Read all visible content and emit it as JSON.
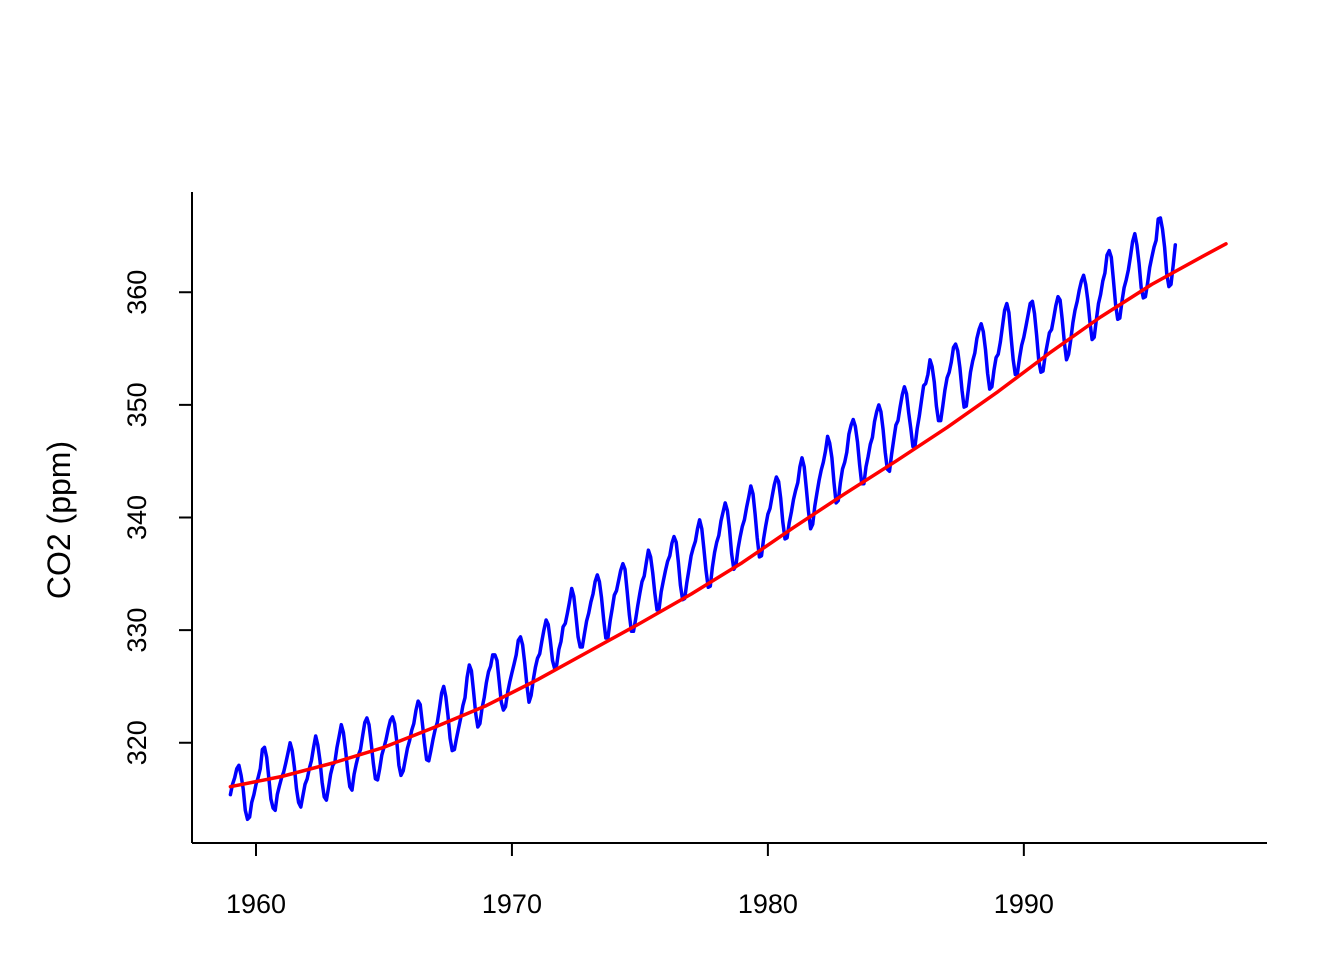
{
  "chart_data": {
    "type": "line",
    "title": "",
    "xlabel": "",
    "ylabel": "CO2 (ppm)",
    "xlim": [
      1957.5,
      1999.5
    ],
    "ylim": [
      311.1,
      368.9
    ],
    "x_ticks": [
      1960,
      1970,
      1980,
      1990
    ],
    "y_ticks": [
      320,
      330,
      340,
      350,
      360
    ],
    "grid": false,
    "legend": "none",
    "series": [
      {
        "kind": "monthly",
        "color": "#0000ff",
        "x_start": 1959.0,
        "x_step": 0.0833333,
        "values": [
          315.4,
          316.3,
          316.9,
          317.7,
          318.0,
          317.1,
          315.9,
          314.0,
          313.2,
          313.4,
          314.7,
          315.4,
          316.3,
          316.9,
          317.7,
          319.4,
          319.6,
          318.7,
          316.9,
          315.0,
          314.2,
          314.0,
          315.4,
          316.2,
          316.9,
          317.4,
          318.2,
          319.1,
          320.0,
          319.3,
          317.8,
          315.9,
          314.7,
          314.3,
          315.3,
          316.3,
          316.8,
          317.7,
          318.4,
          319.6,
          320.6,
          319.8,
          318.4,
          316.5,
          315.2,
          314.9,
          316.0,
          317.2,
          318.0,
          318.3,
          319.6,
          320.6,
          321.6,
          320.9,
          319.3,
          317.5,
          316.1,
          315.8,
          317.2,
          318.1,
          318.9,
          319.4,
          320.6,
          321.8,
          322.2,
          321.6,
          320.0,
          318.2,
          316.8,
          316.7,
          317.7,
          318.9,
          319.6,
          320.3,
          321.2,
          322.0,
          322.3,
          321.7,
          320.1,
          318.0,
          317.1,
          317.5,
          318.5,
          319.5,
          320.2,
          321.1,
          321.7,
          322.9,
          323.7,
          323.4,
          321.7,
          320.0,
          318.5,
          318.4,
          319.3,
          320.3,
          321.2,
          321.8,
          323.0,
          324.4,
          325.0,
          324.1,
          322.4,
          320.4,
          319.3,
          319.4,
          320.4,
          321.3,
          322.2,
          323.3,
          324.0,
          325.8,
          326.9,
          326.4,
          324.6,
          322.6,
          321.4,
          321.7,
          323.1,
          324.0,
          325.3,
          326.3,
          326.8,
          327.8,
          327.8,
          327.3,
          325.5,
          323.6,
          322.9,
          323.2,
          324.5,
          325.4,
          326.2,
          327.0,
          327.8,
          329.1,
          329.4,
          328.7,
          327.1,
          325.1,
          323.6,
          324.2,
          325.6,
          326.7,
          327.5,
          327.9,
          329.0,
          330.0,
          330.9,
          330.5,
          329.1,
          327.3,
          326.6,
          326.9,
          328.3,
          329.0,
          330.3,
          330.6,
          331.5,
          332.5,
          333.7,
          333.0,
          331.3,
          329.4,
          328.5,
          328.5,
          329.7,
          330.8,
          331.5,
          332.5,
          333.2,
          334.3,
          334.9,
          334.3,
          332.9,
          330.9,
          329.3,
          329.3,
          330.8,
          331.9,
          333.1,
          333.5,
          334.4,
          335.3,
          335.9,
          335.4,
          333.5,
          331.4,
          329.9,
          329.9,
          331.0,
          332.2,
          333.3,
          334.3,
          334.8,
          336.0,
          337.1,
          336.5,
          335.1,
          333.3,
          331.8,
          331.9,
          333.4,
          334.4,
          335.3,
          336.1,
          336.6,
          337.7,
          338.3,
          337.8,
          336.1,
          334.0,
          332.7,
          332.8,
          334.2,
          335.4,
          336.6,
          337.3,
          337.9,
          339.0,
          339.8,
          339.0,
          337.2,
          335.3,
          333.8,
          333.9,
          335.6,
          336.9,
          337.8,
          338.4,
          339.7,
          340.5,
          341.3,
          340.6,
          339.0,
          336.8,
          335.4,
          335.7,
          337.2,
          338.3,
          339.2,
          339.8,
          340.9,
          341.8,
          342.8,
          342.1,
          340.3,
          338.2,
          336.5,
          336.6,
          338.1,
          339.3,
          340.3,
          340.8,
          341.9,
          342.9,
          343.6,
          343.2,
          341.7,
          339.6,
          338.1,
          338.2,
          339.5,
          340.5,
          341.6,
          342.4,
          343.1,
          344.5,
          345.3,
          344.5,
          342.6,
          340.6,
          339.0,
          339.4,
          341.0,
          342.2,
          343.3,
          344.2,
          344.9,
          345.9,
          347.2,
          346.6,
          345.3,
          343.1,
          341.3,
          341.5,
          343.1,
          344.3,
          344.9,
          345.8,
          347.4,
          348.2,
          348.7,
          348.1,
          346.7,
          344.7,
          343.0,
          343.0,
          344.5,
          345.4,
          346.5,
          347.1,
          348.5,
          349.4,
          350.0,
          349.4,
          347.8,
          345.8,
          344.3,
          344.1,
          345.6,
          346.9,
          348.2,
          348.6,
          349.8,
          350.9,
          351.6,
          351.0,
          349.3,
          347.9,
          346.3,
          346.4,
          347.9,
          349.0,
          350.4,
          351.7,
          351.9,
          352.7,
          354.0,
          353.4,
          352.0,
          349.9,
          348.6,
          348.6,
          349.9,
          351.3,
          352.4,
          352.9,
          353.8,
          355.1,
          355.4,
          354.8,
          353.3,
          351.3,
          349.8,
          349.9,
          351.4,
          352.9,
          353.9,
          354.6,
          355.9,
          356.7,
          357.2,
          356.5,
          354.9,
          352.8,
          351.4,
          351.6,
          353.1,
          354.2,
          354.5,
          355.6,
          357.0,
          358.4,
          359.0,
          358.2,
          356.1,
          354.0,
          352.7,
          352.8,
          354.2,
          355.3,
          356.0,
          357.0,
          358.0,
          359.0,
          359.2,
          358.1,
          356.2,
          353.9,
          352.9,
          353.0,
          354.4,
          355.4,
          356.4,
          356.7,
          357.7,
          358.8,
          359.6,
          359.3,
          357.6,
          355.5,
          354.0,
          354.5,
          355.8,
          357.3,
          358.4,
          359.2,
          360.2,
          361.0,
          361.5,
          360.7,
          359.3,
          357.3,
          355.8,
          356.0,
          357.6,
          359.0,
          359.8,
          361.0,
          361.7,
          363.3,
          363.7,
          363.1,
          361.1,
          358.9,
          357.6,
          357.7,
          359.2,
          360.4,
          361.1,
          362.0,
          363.2,
          364.5,
          365.2,
          364.2,
          362.6,
          360.4,
          359.5,
          359.6,
          360.8,
          362.2,
          363.1,
          364.0,
          364.6,
          366.5,
          366.6,
          365.6,
          364.0,
          361.6,
          360.5,
          360.7,
          362.4,
          364.2
        ]
      },
      {
        "kind": "trend",
        "color": "#ff0000",
        "x": [
          1959.0,
          1961.0,
          1963.0,
          1965.0,
          1967.0,
          1969.0,
          1971.0,
          1973.0,
          1975.0,
          1977.0,
          1979.0,
          1981.0,
          1983.0,
          1985.0,
          1987.0,
          1989.0,
          1991.0,
          1993.0,
          1995.0,
          1997.0,
          1997.9
        ],
        "values": [
          316.1,
          317.0,
          318.2,
          319.6,
          321.4,
          323.3,
          325.6,
          328.1,
          330.6,
          333.2,
          336.0,
          339.1,
          342.1,
          345.0,
          348.0,
          351.2,
          354.6,
          357.8,
          360.7,
          363.2,
          364.3
        ]
      }
    ]
  }
}
